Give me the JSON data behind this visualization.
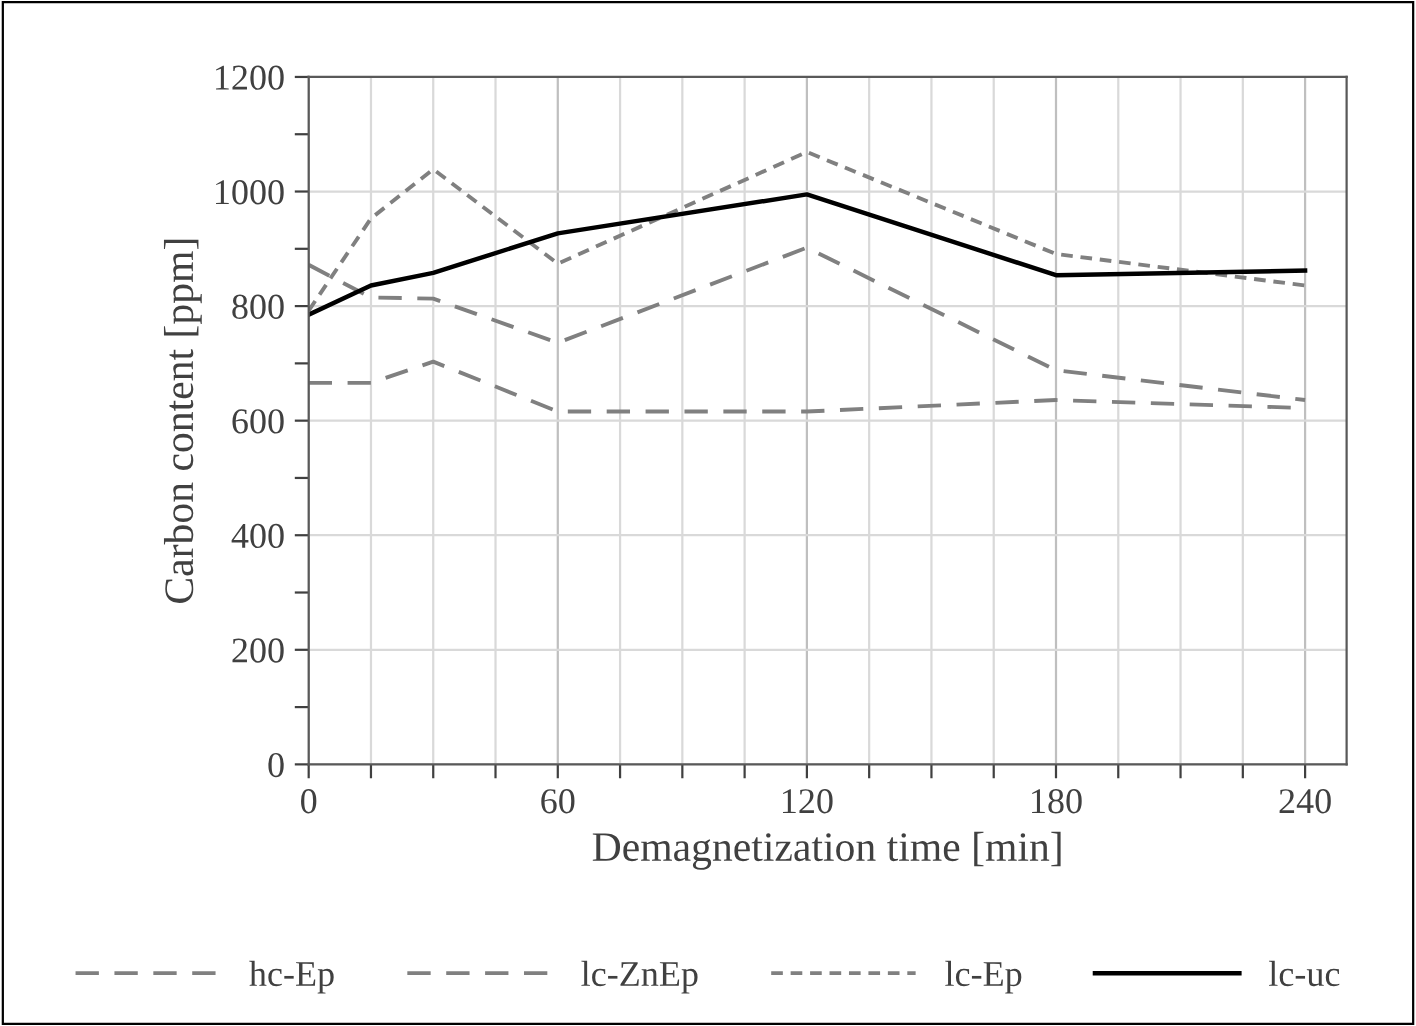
{
  "chart_data": {
    "type": "line",
    "xlabel": "Demagnetization time [min]",
    "ylabel": "Carbon content [ppm]",
    "x": [
      0,
      15,
      30,
      60,
      120,
      180,
      240
    ],
    "series": [
      {
        "name": "hc-Ep",
        "color": "#808080",
        "line_style": "dashed",
        "values": [
          666,
          666,
          703,
          616,
          616,
          636,
          622
        ]
      },
      {
        "name": "lc-ZnEp",
        "color": "#808080",
        "line_style": "dashed",
        "values": [
          872,
          815,
          813,
          736,
          902,
          688,
          636
        ]
      },
      {
        "name": "lc-Ep",
        "color": "#808080",
        "line_style": "dotted",
        "values": [
          792,
          953,
          1039,
          874,
          1069,
          891,
          836
        ]
      },
      {
        "name": "lc-uc",
        "color": "#000000",
        "line_style": "solid",
        "values": [
          785,
          836,
          858,
          927,
          995,
          854,
          862
        ]
      }
    ],
    "xlim": [
      0,
      250
    ],
    "xticks": [
      0,
      {
        "value": 15,
        "label": null
      },
      {
        "value": 30,
        "label": null
      },
      {
        "value": 45,
        "label": null
      },
      60,
      {
        "value": 75,
        "label": null
      },
      {
        "value": 90,
        "label": null
      },
      {
        "value": 105,
        "label": null
      },
      120,
      {
        "value": 135,
        "label": null
      },
      {
        "value": 150,
        "label": null
      },
      {
        "value": 165,
        "label": null
      },
      180,
      {
        "value": 195,
        "label": null
      },
      {
        "value": 210,
        "label": null
      },
      {
        "value": 225,
        "label": null
      },
      240
    ],
    "ylim": [
      0,
      1200
    ],
    "yticks": [
      0,
      {
        "value": 100,
        "label": null
      },
      200,
      {
        "value": 300,
        "label": null
      },
      400,
      {
        "value": 500,
        "label": null
      },
      600,
      {
        "value": 700,
        "label": null
      },
      800,
      {
        "value": 900,
        "label": null
      },
      1000,
      {
        "value": 1100,
        "label": null
      },
      1200
    ],
    "grid": true,
    "legend": "bottom",
    "marker": "none"
  }
}
